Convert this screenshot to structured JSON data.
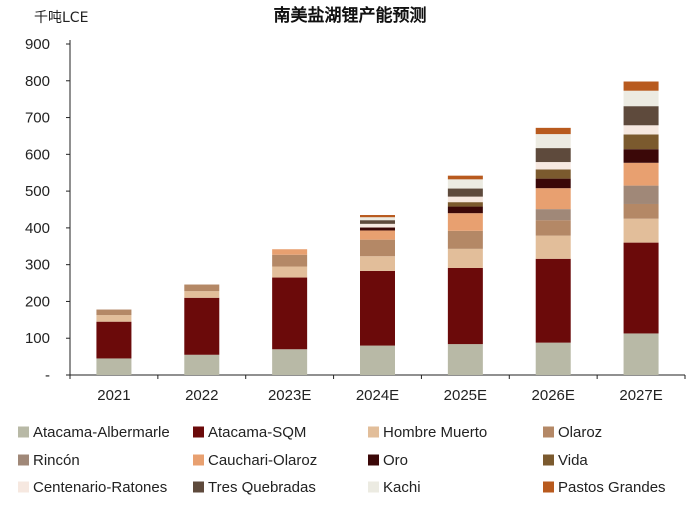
{
  "chart_data": {
    "type": "bar",
    "stacked": true,
    "title": "南美盐湖锂产能预测",
    "unit_label": "千吨LCE",
    "categories": [
      "2021",
      "2022",
      "2023E",
      "2024E",
      "2025E",
      "2026E",
      "2027E"
    ],
    "y_ticks": [
      "-",
      "100",
      "200",
      "300",
      "400",
      "500",
      "600",
      "700",
      "800",
      "900"
    ],
    "ylim": [
      0,
      900
    ],
    "grid": false,
    "legend_position": "bottom",
    "series": [
      {
        "name": "Atacama-Albermarle",
        "color": "#b8b9a6",
        "values": [
          45,
          55,
          70,
          80,
          84,
          88,
          113
        ]
      },
      {
        "name": "Atacama-SQM",
        "color": "#6b0a0a",
        "values": [
          100,
          155,
          195,
          203,
          207,
          228,
          247
        ]
      },
      {
        "name": "Hombre Muerto",
        "color": "#e2be9a",
        "values": [
          18,
          18,
          30,
          40,
          52,
          63,
          65
        ]
      },
      {
        "name": "Olaroz",
        "color": "#b48866",
        "values": [
          15,
          18,
          32,
          45,
          49,
          42,
          40
        ]
      },
      {
        "name": "Rincón",
        "color": "#a08878",
        "values": [
          0,
          0,
          0,
          0,
          0,
          30,
          50
        ]
      },
      {
        "name": "Cauchari-Olaroz",
        "color": "#e8a070",
        "values": [
          0,
          0,
          15,
          25,
          48,
          57,
          62
        ]
      },
      {
        "name": "Oro",
        "color": "#3b0808",
        "values": [
          0,
          0,
          0,
          8,
          18,
          26,
          37
        ]
      },
      {
        "name": "Vida",
        "color": "#7b5a2e",
        "values": [
          0,
          0,
          0,
          0,
          12,
          25,
          40
        ]
      },
      {
        "name": "Centenario-Ratones",
        "color": "#f6e8e0",
        "values": [
          0,
          0,
          0,
          10,
          15,
          20,
          25
        ]
      },
      {
        "name": "Tres Quebradas",
        "color": "#5e4a3c",
        "values": [
          0,
          0,
          0,
          10,
          22,
          38,
          52
        ]
      },
      {
        "name": "Kachi",
        "color": "#ecebe2",
        "values": [
          0,
          0,
          0,
          8,
          25,
          38,
          42
        ]
      },
      {
        "name": "Pastos Grandes",
        "color": "#b85a1e",
        "values": [
          0,
          0,
          0,
          6,
          10,
          17,
          25
        ]
      }
    ]
  }
}
